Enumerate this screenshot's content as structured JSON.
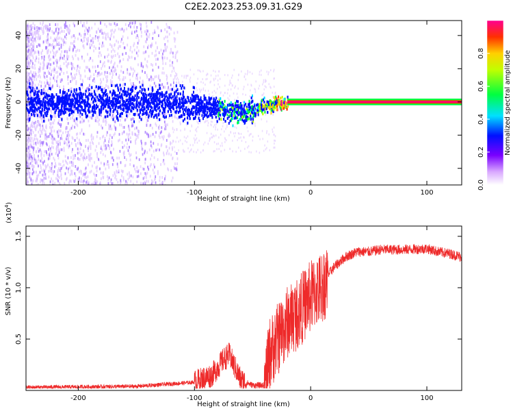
{
  "title": "C2E2.2023.253.09.31.G29",
  "colors": {
    "line": "#ee2a2a",
    "axis": "#000000",
    "background": "#ffffff"
  },
  "chart_data": [
    {
      "type": "heatmap",
      "xlabel": "Height of straight line (km)",
      "ylabel": "Frequency (Hz)",
      "xlim": [
        -245,
        130
      ],
      "ylim": [
        -50,
        49
      ],
      "x_ticks": [
        "-200",
        "-100",
        "0",
        "100"
      ],
      "x_tick_values": [
        -200,
        -100,
        0,
        100
      ],
      "y_ticks": [
        "-40",
        "-20",
        "0",
        "20",
        "40"
      ],
      "y_tick_values": [
        -40,
        -20,
        0,
        20,
        40
      ],
      "colorbar": {
        "label": "Normalized spectral amplitude",
        "range": [
          0,
          1
        ],
        "ticks": [
          "0.0",
          "0.2",
          "0.4",
          "0.6",
          "0.8"
        ],
        "tick_values": [
          0.0,
          0.2,
          0.4,
          0.6,
          0.8
        ]
      },
      "ridge": {
        "x": [
          -245,
          -200,
          -150,
          -100,
          -80,
          -60,
          -50,
          -40,
          -30,
          -20,
          -10,
          0,
          50,
          130
        ],
        "frequency": [
          0,
          1,
          1,
          -1,
          -3,
          -6,
          -5,
          -2,
          -1,
          0,
          0,
          0,
          0,
          0
        ]
      }
    },
    {
      "type": "line",
      "xlabel": "Height of straight line (km)",
      "ylabel": "SNR (10 * v/v)",
      "y_multiplier": "(x10",
      "y_multiplier_exp": "4",
      "y_multiplier_close": ")",
      "xlim": [
        -245,
        130
      ],
      "ylim": [
        0,
        1.6
      ],
      "x_ticks": [
        "-200",
        "-100",
        "0",
        "100"
      ],
      "x_tick_values": [
        -200,
        -100,
        0,
        100
      ],
      "y_ticks": [
        "0.5",
        "1.0",
        "1.5"
      ],
      "y_tick_values": [
        0.5,
        1.0,
        1.5
      ],
      "envelope": {
        "x": [
          -245,
          -150,
          -100,
          -85,
          -75,
          -70,
          -65,
          -60,
          -50,
          -40,
          -38,
          -35,
          -30,
          -25,
          -20,
          -10,
          0,
          10,
          20,
          30,
          40,
          50,
          60,
          80,
          100,
          110,
          120,
          130
        ],
        "y": [
          0.03,
          0.04,
          0.08,
          0.15,
          0.3,
          0.35,
          0.22,
          0.1,
          0.05,
          0.05,
          0.2,
          0.4,
          0.5,
          0.6,
          0.7,
          0.8,
          0.95,
          1.05,
          1.2,
          1.3,
          1.35,
          1.35,
          1.37,
          1.37,
          1.38,
          1.35,
          1.33,
          1.3
        ]
      }
    }
  ]
}
